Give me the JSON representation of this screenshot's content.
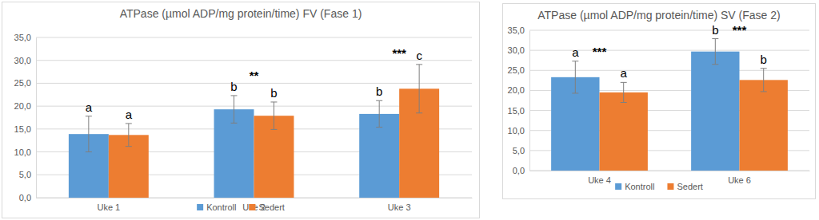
{
  "chart_data": [
    {
      "type": "bar",
      "title": "ATPase (µmol ADP/mg protein/time) FV (Fase 1)",
      "categories": [
        "Uke 1",
        "Uke 2",
        "Uke 3"
      ],
      "series": [
        {
          "name": "Kontroll",
          "color": "#5b9bd5",
          "values": [
            13.9,
            19.3,
            18.3
          ],
          "errors": [
            3.9,
            3.0,
            2.9
          ],
          "letters": [
            "a",
            "b",
            "b"
          ]
        },
        {
          "name": "Sedert",
          "color": "#ed7d31",
          "values": [
            13.7,
            17.9,
            23.8
          ],
          "errors": [
            2.5,
            3.0,
            5.3
          ],
          "letters": [
            "a",
            "b",
            "c"
          ]
        }
      ],
      "annotations": [
        {
          "text": "**",
          "category": "Uke 2",
          "y": 25.8
        },
        {
          "text": "***",
          "category": "Uke 3",
          "y": 30.6
        }
      ],
      "ylim": [
        0,
        35
      ],
      "yticks": [
        {
          "value": 0,
          "label": "0,0"
        },
        {
          "value": 5,
          "label": "5,0"
        },
        {
          "value": 10,
          "label": "10,0"
        },
        {
          "value": 15,
          "label": "15,0"
        },
        {
          "value": 20,
          "label": "20,0"
        },
        {
          "value": 25,
          "label": "25,0"
        },
        {
          "value": 30,
          "label": "30,0"
        },
        {
          "value": 35,
          "label": "35,0"
        }
      ],
      "grid": true,
      "legend": "bottom"
    },
    {
      "type": "bar",
      "title": "ATPase (µmol ADP/mg protein/time) SV (Fase 2)",
      "categories": [
        "Uke 4",
        "Uke 6"
      ],
      "series": [
        {
          "name": "Kontroll",
          "color": "#5b9bd5",
          "values": [
            23.3,
            29.7
          ],
          "errors": [
            4.0,
            3.2
          ],
          "letters": [
            "a",
            "b"
          ]
        },
        {
          "name": "Sedert",
          "color": "#ed7d31",
          "values": [
            19.5,
            22.6
          ],
          "errors": [
            2.5,
            2.9
          ],
          "letters": [
            "a",
            "b"
          ]
        }
      ],
      "annotations": [
        {
          "text": "***",
          "category": "Uke 4",
          "y": 28.6
        },
        {
          "text": "***",
          "category": "Uke 6",
          "y": 34.0
        }
      ],
      "ylim": [
        0,
        35
      ],
      "yticks": [
        {
          "value": 0,
          "label": "0,0"
        },
        {
          "value": 5,
          "label": "5,0"
        },
        {
          "value": 10,
          "label": "10,0"
        },
        {
          "value": 15,
          "label": "15,0"
        },
        {
          "value": 20,
          "label": "20,0"
        },
        {
          "value": 25,
          "label": "25,0"
        },
        {
          "value": 30,
          "label": "30,0"
        },
        {
          "value": 35,
          "label": "35,0"
        }
      ],
      "grid": true,
      "legend": "bottom"
    }
  ]
}
